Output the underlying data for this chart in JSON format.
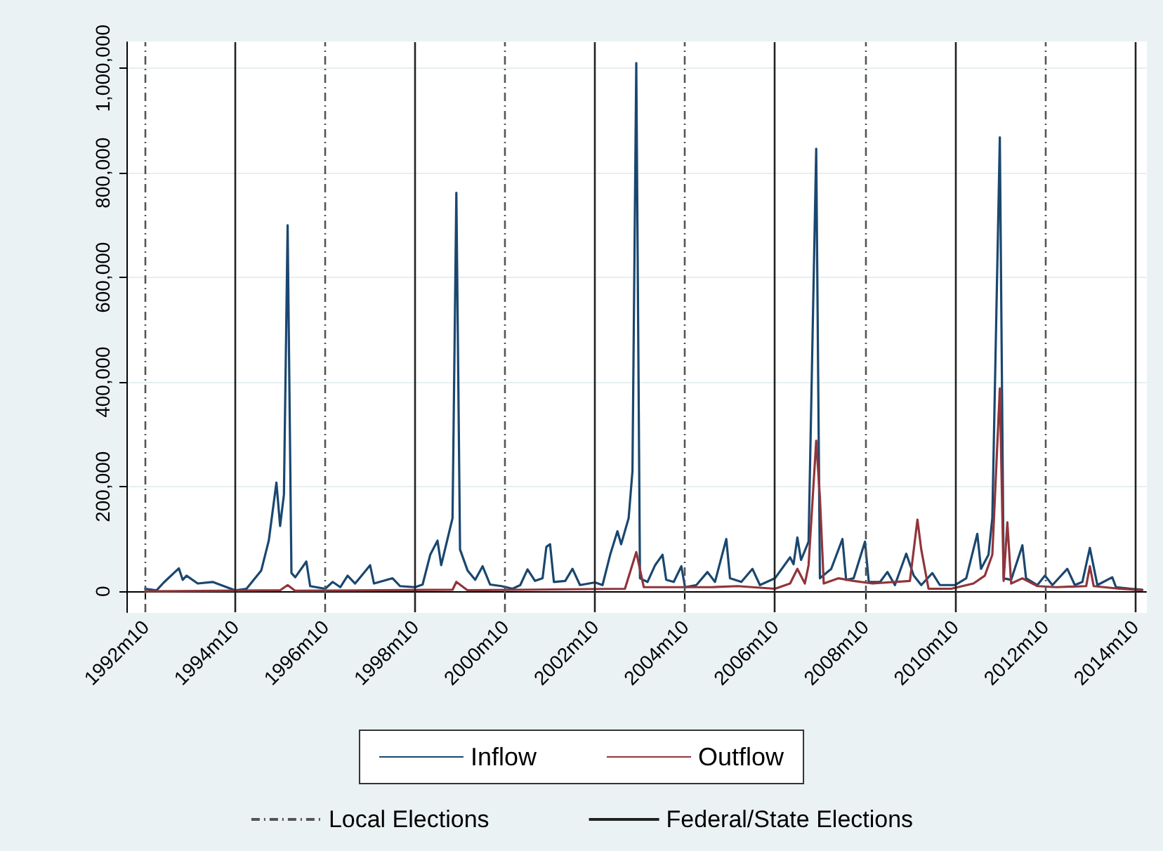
{
  "chart_data": {
    "type": "line",
    "xlim": [
      "1992-05",
      "2015-01"
    ],
    "xticks": [
      {
        "value": "1992-10",
        "label": "1992m10"
      },
      {
        "value": "1994-10",
        "label": "1994m10"
      },
      {
        "value": "1996-10",
        "label": "1996m10"
      },
      {
        "value": "1998-10",
        "label": "1998m10"
      },
      {
        "value": "2000-10",
        "label": "2000m10"
      },
      {
        "value": "2002-10",
        "label": "2002m10"
      },
      {
        "value": "2004-10",
        "label": "2004m10"
      },
      {
        "value": "2006-10",
        "label": "2006m10"
      },
      {
        "value": "2008-10",
        "label": "2008m10"
      },
      {
        "value": "2010-10",
        "label": "2010m10"
      },
      {
        "value": "2012-10",
        "label": "2012m10"
      },
      {
        "value": "2014-10",
        "label": "2014m10"
      }
    ],
    "ylim": [
      -40000,
      1050000
    ],
    "yticks": [
      {
        "value": 0,
        "label": "0"
      },
      {
        "value": 200000,
        "label": "200,000"
      },
      {
        "value": 400000,
        "label": "400,000"
      },
      {
        "value": 600000,
        "label": "600,000"
      },
      {
        "value": 800000,
        "label": "800,000"
      },
      {
        "value": 1000000,
        "label": "1,000,000"
      }
    ],
    "grid": "y",
    "legend": "bottom",
    "marker": "none",
    "line_style": "solid",
    "series": [
      {
        "name": "Inflow",
        "color": "#1a476f",
        "x": [
          "1992-10",
          "1993-01",
          "1993-03",
          "1993-07",
          "1993-08",
          "1993-09",
          "1993-12",
          "1994-04",
          "1994-07",
          "1994-10",
          "1995-01",
          "1995-03",
          "1995-05",
          "1995-07",
          "1995-09",
          "1995-10",
          "1995-11",
          "1995-12",
          "1996-01",
          "1996-02",
          "1996-05",
          "1996-06",
          "1996-10",
          "1996-12",
          "1997-02",
          "1997-04",
          "1997-06",
          "1997-10",
          "1997-11",
          "1998-04",
          "1998-06",
          "1998-10",
          "1998-12",
          "1999-02",
          "1999-04",
          "1999-05",
          "1999-08",
          "1999-09",
          "1999-10",
          "1999-12",
          "2000-02",
          "2000-04",
          "2000-06",
          "2000-09",
          "2000-12",
          "2001-02",
          "2001-04",
          "2001-06",
          "2001-08",
          "2001-09",
          "2001-10",
          "2001-11",
          "2002-02",
          "2002-04",
          "2002-06",
          "2002-10",
          "2002-12",
          "2003-02",
          "2003-04",
          "2003-05",
          "2003-07",
          "2003-08",
          "2003-09",
          "2003-10",
          "2003-12",
          "2004-02",
          "2004-04",
          "2004-05",
          "2004-07",
          "2004-09",
          "2004-10",
          "2005-01",
          "2005-04",
          "2005-06",
          "2005-09",
          "2005-10",
          "2006-01",
          "2006-04",
          "2006-06",
          "2006-10",
          "2007-02",
          "2007-03",
          "2007-04",
          "2007-05",
          "2007-07",
          "2007-09",
          "2007-10",
          "2008-01",
          "2008-04",
          "2008-05",
          "2008-07",
          "2008-10",
          "2008-11",
          "2009-02",
          "2009-04",
          "2009-06",
          "2009-09",
          "2009-11",
          "2010-01",
          "2010-04",
          "2010-06",
          "2010-10",
          "2011-01",
          "2011-04",
          "2011-05",
          "2011-07",
          "2011-08",
          "2011-10",
          "2011-11",
          "2012-01",
          "2012-04",
          "2012-05",
          "2012-08",
          "2012-10",
          "2012-12",
          "2013-04",
          "2013-06",
          "2013-08",
          "2013-10",
          "2013-12",
          "2014-04",
          "2014-05",
          "2014-09",
          "2014-12"
        ],
        "values": [
          5000,
          2000,
          17000,
          44000,
          22000,
          30000,
          15000,
          18000,
          10000,
          2000,
          5000,
          22000,
          40000,
          97000,
          208000,
          125000,
          185000,
          700000,
          35000,
          27000,
          57000,
          10000,
          5000,
          18000,
          8000,
          30000,
          15000,
          50000,
          15000,
          25000,
          10000,
          8000,
          13000,
          70000,
          97000,
          50000,
          140000,
          762000,
          80000,
          40000,
          22000,
          48000,
          13000,
          10000,
          5000,
          12000,
          42000,
          20000,
          25000,
          85000,
          90000,
          18000,
          20000,
          43000,
          12000,
          17000,
          12000,
          70000,
          115000,
          90000,
          140000,
          230000,
          1010000,
          25000,
          18000,
          50000,
          70000,
          22000,
          18000,
          48000,
          8000,
          12000,
          37000,
          18000,
          100000,
          25000,
          18000,
          43000,
          12000,
          25000,
          65000,
          52000,
          103000,
          60000,
          95000,
          846000,
          25000,
          43000,
          100000,
          22000,
          25000,
          95000,
          18000,
          18000,
          37000,
          12000,
          72000,
          30000,
          12000,
          35000,
          12000,
          12000,
          25000,
          110000,
          43000,
          70000,
          140000,
          868000,
          25000,
          22000,
          88000,
          25000,
          12000,
          30000,
          12000,
          43000,
          12000,
          18000,
          83000,
          12000,
          27000,
          8000,
          5000,
          3000
        ]
      },
      {
        "name": "Outflow",
        "color": "#90353b",
        "x": [
          "1992-10",
          "1995-10",
          "1995-12",
          "1996-02",
          "1999-08",
          "1999-09",
          "1999-12",
          "2003-06",
          "2003-09",
          "2003-11",
          "2005-05",
          "2005-12",
          "2006-10",
          "2007-02",
          "2007-04",
          "2007-06",
          "2007-07",
          "2007-09",
          "2007-10",
          "2007-11",
          "2008-03",
          "2008-07",
          "2008-12",
          "2009-10",
          "2009-12",
          "2010-01",
          "2010-03",
          "2010-09",
          "2011-03",
          "2011-06",
          "2011-08",
          "2011-10",
          "2011-11",
          "2011-12",
          "2012-01",
          "2012-04",
          "2012-08",
          "2013-01",
          "2013-09",
          "2013-10",
          "2013-11",
          "2014-06",
          "2014-12"
        ],
        "values": [
          0,
          2000,
          12000,
          1000,
          3000,
          18000,
          2000,
          5000,
          75000,
          8000,
          8000,
          10000,
          5000,
          15000,
          43000,
          15000,
          50000,
          288000,
          180000,
          15000,
          25000,
          20000,
          15000,
          20000,
          137000,
          80000,
          5000,
          5000,
          15000,
          30000,
          70000,
          388000,
          20000,
          132000,
          15000,
          25000,
          10000,
          8000,
          10000,
          48000,
          10000,
          5000,
          2000
        ]
      }
    ],
    "ref_lines": [
      {
        "axis": "x",
        "value": "1992-10",
        "label": "Local Elections",
        "line_style": "dashed",
        "color": "#555555"
      },
      {
        "axis": "x",
        "value": "1996-10",
        "line_style": "dashed",
        "color": "#555555"
      },
      {
        "axis": "x",
        "value": "2000-10",
        "line_style": "dashed",
        "color": "#555555"
      },
      {
        "axis": "x",
        "value": "2004-10",
        "line_style": "dashed",
        "color": "#555555"
      },
      {
        "axis": "x",
        "value": "2008-10",
        "line_style": "dashed",
        "color": "#555555"
      },
      {
        "axis": "x",
        "value": "2012-10",
        "line_style": "dashed",
        "color": "#555555"
      },
      {
        "axis": "x",
        "value": "1994-10",
        "label": "Federal/State Elections",
        "line_style": "solid",
        "color": "#222222"
      },
      {
        "axis": "x",
        "value": "1998-10",
        "line_style": "solid",
        "color": "#222222"
      },
      {
        "axis": "x",
        "value": "2002-10",
        "line_style": "solid",
        "color": "#222222"
      },
      {
        "axis": "x",
        "value": "2006-10",
        "line_style": "solid",
        "color": "#222222"
      },
      {
        "axis": "x",
        "value": "2010-10",
        "line_style": "solid",
        "color": "#222222"
      },
      {
        "axis": "x",
        "value": "2014-10",
        "line_style": "solid",
        "color": "#222222"
      }
    ]
  }
}
